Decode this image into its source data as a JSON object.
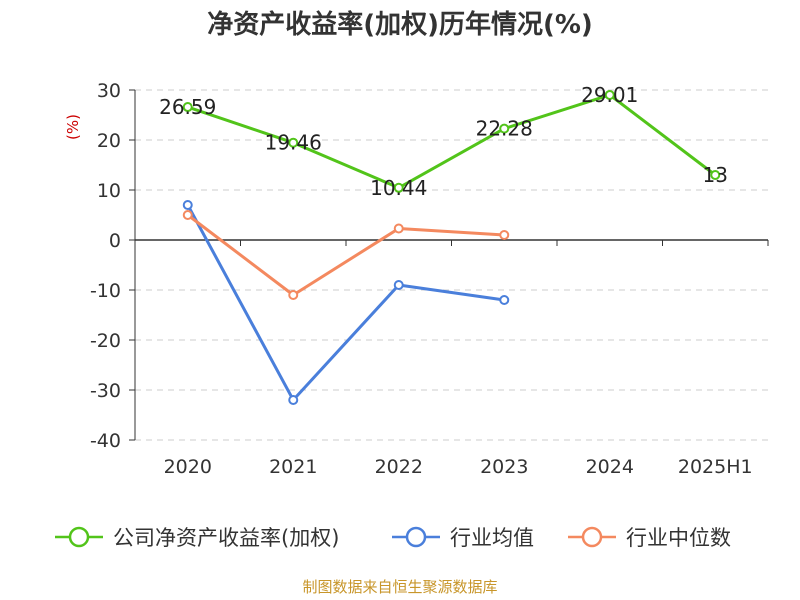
{
  "chart_data": {
    "type": "line",
    "title": "净资产收益率(加权)历年情况(%)",
    "ylabel": "(%)",
    "categories": [
      "2020",
      "2021",
      "2022",
      "2023",
      "2024",
      "2025H1"
    ],
    "ylim": [
      -40,
      30
    ],
    "yticks": [
      30,
      20,
      10,
      0,
      -10,
      -20,
      -30,
      -40
    ],
    "grid": true,
    "legend_position": "bottom",
    "series": [
      {
        "name": "公司净资产收益率(加权)",
        "color": "#52c41a",
        "values": [
          26.59,
          19.46,
          10.44,
          22.28,
          29.01,
          13
        ],
        "labels": [
          "26.59",
          "19.46",
          "10.44",
          "22.28",
          "29.01",
          "13"
        ]
      },
      {
        "name": "行业均值",
        "color": "#4a7fdb",
        "values": [
          7,
          -32,
          -9,
          -12,
          null,
          null
        ]
      },
      {
        "name": "行业中位数",
        "color": "#f4895f",
        "values": [
          5,
          -11,
          2.3,
          1,
          null,
          null
        ]
      }
    ]
  },
  "source_text": "制图数据来自恒生聚源数据库"
}
